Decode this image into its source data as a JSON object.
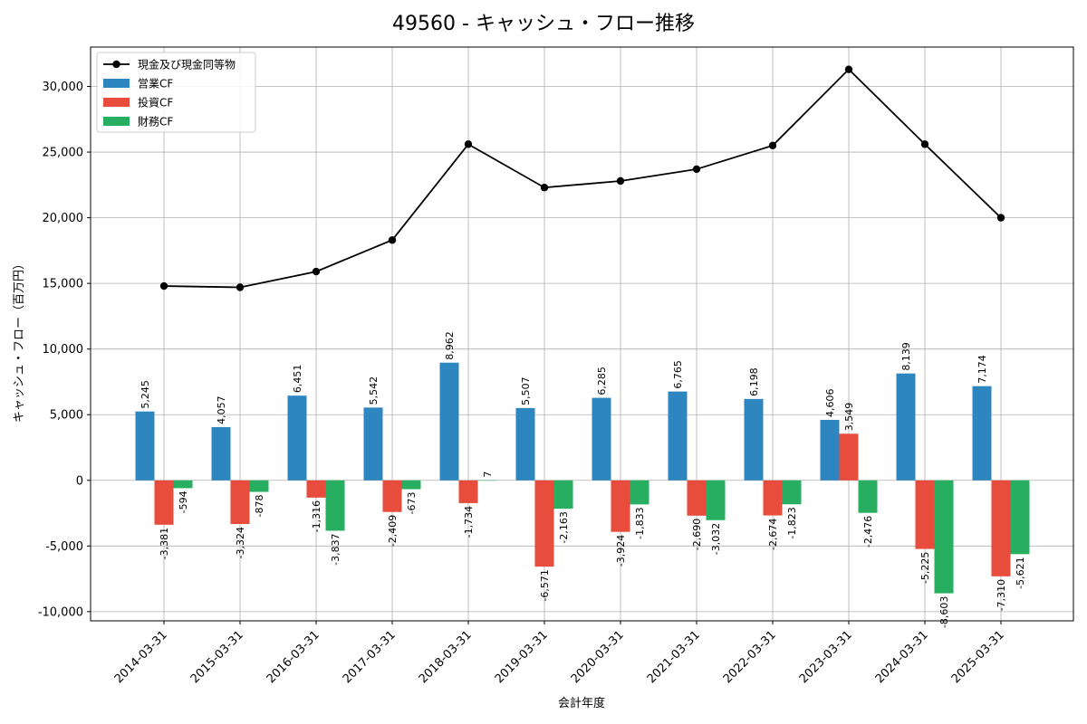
{
  "chart_data": {
    "type": "bar",
    "title": "49560 - キャッシュ・フロー推移",
    "xlabel": "会計年度",
    "ylabel": "キャッシュ・フロー（百万円）",
    "ylim": [
      -10700,
      33000
    ],
    "yticks": [
      -10000,
      -5000,
      0,
      5000,
      10000,
      15000,
      20000,
      25000,
      30000
    ],
    "ytick_labels": [
      "-10,000",
      "-5,000",
      "0",
      "5,000",
      "10,000",
      "15,000",
      "20,000",
      "25,000",
      "30,000"
    ],
    "grid": true,
    "legend_position": "top-left",
    "categories": [
      "2014-03-31",
      "2015-03-31",
      "2016-03-31",
      "2017-03-31",
      "2018-03-31",
      "2019-03-31",
      "2020-03-31",
      "2021-03-31",
      "2022-03-31",
      "2023-03-31",
      "2024-03-31",
      "2025-03-31"
    ],
    "series": [
      {
        "name": "営業CF",
        "kind": "bar",
        "color": "#2e86c1",
        "values": [
          5245,
          4057,
          6451,
          5542,
          8962,
          5507,
          6285,
          6765,
          6198,
          4606,
          8139,
          7174
        ],
        "labels": [
          "5,245",
          "4,057",
          "6,451",
          "5,542",
          "8,962",
          "5,507",
          "6,285",
          "6,765",
          "6,198",
          "4,606",
          "8,139",
          "7,174"
        ]
      },
      {
        "name": "投資CF",
        "kind": "bar",
        "color": "#e74c3c",
        "values": [
          -3381,
          -3324,
          -1316,
          -2409,
          -1734,
          -6571,
          -3924,
          -2690,
          -2674,
          3549,
          -5225,
          -7310
        ],
        "labels": [
          "-3,381",
          "-3,324",
          "-1,316",
          "-2,409",
          "-1,734",
          "-6,571",
          "-3,924",
          "-2,690",
          "-2,674",
          "3,549",
          "-5,225",
          "-7,310"
        ]
      },
      {
        "name": "財務CF",
        "kind": "bar",
        "color": "#27ae60",
        "values": [
          -594,
          -878,
          -3837,
          -673,
          7,
          -2163,
          -1833,
          -3032,
          -1823,
          -2476,
          -8603,
          -5621
        ],
        "labels": [
          "-594",
          "-878",
          "-3,837",
          "-673",
          "7",
          "-2,163",
          "-1,833",
          "-3,032",
          "-1,823",
          "-2,476",
          "-8,603",
          "-5,621"
        ]
      },
      {
        "name": "現金及び現金同等物",
        "kind": "line",
        "color": "#000000",
        "values": [
          14800,
          14700,
          15900,
          18300,
          25600,
          22300,
          22800,
          23700,
          25500,
          31300,
          25600,
          20000
        ]
      }
    ]
  }
}
